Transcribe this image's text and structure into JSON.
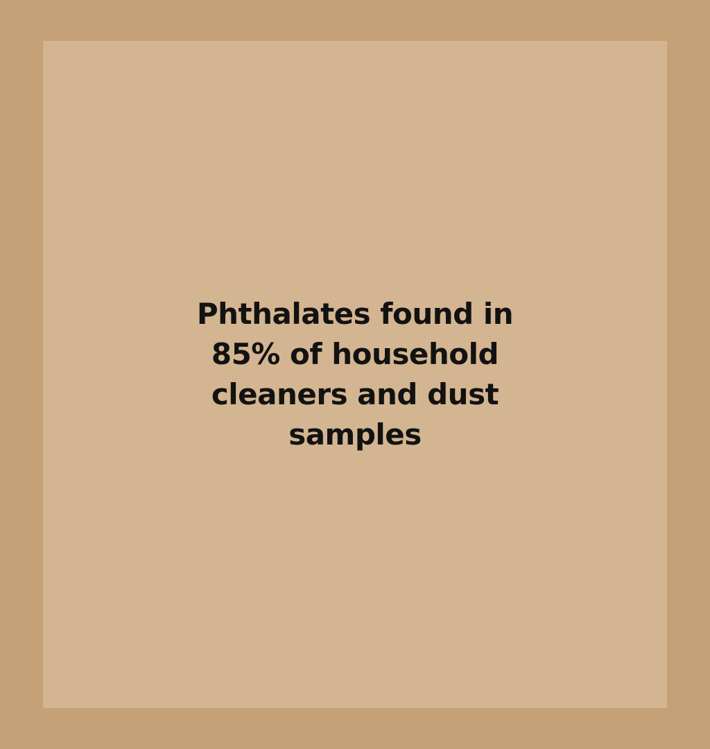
{
  "headline": {
    "lines": [
      "Phthalates found in",
      "85% of household",
      "cleaners and dust",
      "samples"
    ]
  },
  "colors": {
    "frame": "#c4a176",
    "card": "#d4b591",
    "text": "#121212"
  }
}
